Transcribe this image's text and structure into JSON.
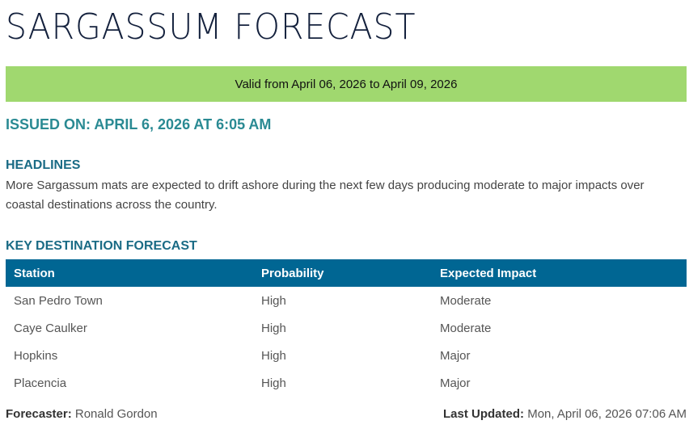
{
  "title": "SARGASSUM FORECAST",
  "valid_banner": "Valid from April 06, 2026 to April 09, 2026",
  "issued": "ISSUED ON: APRIL 6, 2026 AT 6:05 AM",
  "headlines": {
    "title": "HEADLINES",
    "text": "More Sargassum mats are expected to drift ashore during the next few days producing moderate to major impacts over coastal destinations across the country."
  },
  "forecast": {
    "title": "KEY DESTINATION FORECAST",
    "columns": [
      "Station",
      "Probability",
      "Expected Impact"
    ],
    "rows": [
      [
        "San Pedro Town",
        "High",
        "Moderate"
      ],
      [
        "Caye Caulker",
        "High",
        "Moderate"
      ],
      [
        "Hopkins",
        "High",
        "Major"
      ],
      [
        "Placencia",
        "High",
        "Major"
      ]
    ]
  },
  "footer": {
    "forecaster_label": "Forecaster:",
    "forecaster": "Ronald Gordon",
    "updated_label": "Last Updated:",
    "updated": "Mon, April 06, 2026 07:06 AM"
  },
  "colors": {
    "banner": "#a0d86f",
    "table_header": "#006693",
    "issued": "#2a8a93",
    "section": "#1a6b85"
  }
}
